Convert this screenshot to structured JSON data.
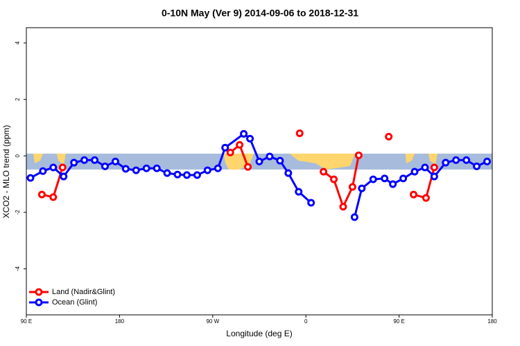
{
  "chart_data": {
    "type": "line",
    "title": "0-10N May (Ver 9)   2014-09-06 to 2018-12-31",
    "x_label": "Longitude (deg E)",
    "y_label": "XCO2 - MLO trend (ppm)",
    "xlim": [
      90,
      540
    ],
    "xticks": [
      {
        "value": 90,
        "label": "90 E"
      },
      180,
      {
        "value": 270,
        "label": "90 W"
      },
      {
        "value": 360,
        "label": "0"
      },
      {
        "value": 450,
        "label": "90 E"
      },
      {
        "value": 540,
        "label": "180"
      }
    ],
    "ylim": [
      -5.63,
      4.54
    ],
    "yticks": [
      -4,
      -2,
      0,
      2,
      4
    ],
    "legend": "bottom-left",
    "series": [
      {
        "name": "Land (Nadir&Glint)",
        "color": "#ff0000",
        "x": [
          105,
          116,
          125,
          null,
          287,
          296,
          304,
          null,
          354,
          null,
          377,
          387,
          396,
          405,
          411,
          null,
          440,
          null,
          464,
          476,
          484
        ],
        "values": [
          -1.37,
          -1.46,
          -0.41,
          null,
          0.12,
          0.39,
          -0.39,
          null,
          0.8,
          null,
          -0.56,
          -0.83,
          -1.8,
          -1.1,
          0.02,
          null,
          0.68,
          null,
          -1.37,
          -1.49,
          -0.41
        ]
      },
      {
        "name": "Ocean (Glint)",
        "color": "#0000ff",
        "x": [
          94,
          106,
          116,
          126,
          136,
          146,
          156,
          166,
          176,
          186,
          196,
          206,
          216,
          226,
          236,
          245,
          255,
          265,
          275,
          282,
          300,
          306,
          315,
          325,
          335,
          343,
          353,
          365,
          null,
          407,
          414,
          425,
          436,
          444,
          454,
          465,
          475,
          484,
          495,
          505,
          515,
          525,
          535
        ],
        "values": [
          -0.78,
          -0.54,
          -0.41,
          -0.73,
          -0.24,
          -0.15,
          -0.15,
          -0.37,
          -0.2,
          -0.46,
          -0.51,
          -0.44,
          -0.44,
          -0.61,
          -0.66,
          -0.68,
          -0.68,
          -0.51,
          -0.44,
          0.29,
          0.78,
          0.61,
          -0.2,
          -0.02,
          -0.17,
          -0.61,
          -1.27,
          -1.66,
          null,
          -2.17,
          -1.15,
          -0.83,
          -0.8,
          -1.0,
          -0.8,
          -0.56,
          -0.41,
          -0.73,
          -0.24,
          -0.15,
          -0.15,
          -0.37,
          -0.2
        ]
      }
    ]
  }
}
